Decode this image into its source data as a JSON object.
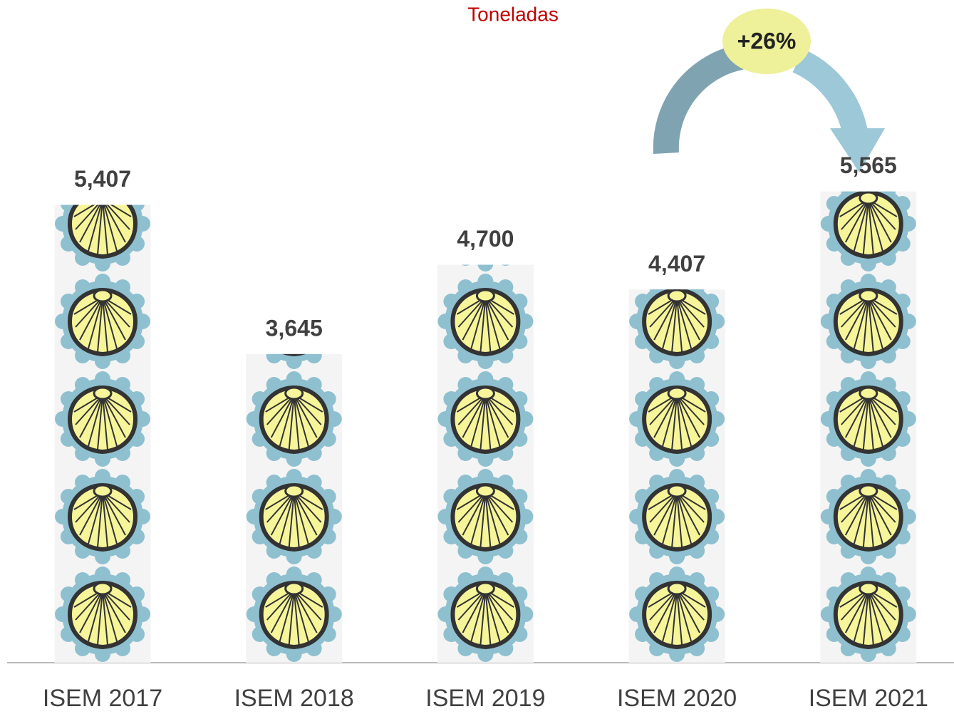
{
  "chart_data": {
    "type": "bar",
    "title": "Toneladas",
    "categories": [
      "ISEM 2017",
      "ISEM 2018",
      "ISEM 2019",
      "ISEM 2020",
      "ISEM 2021"
    ],
    "values": [
      5407,
      3645,
      4700,
      4407,
      5565
    ],
    "value_labels": [
      "5,407",
      "3,645",
      "4,700",
      "4,407",
      "5,565"
    ],
    "ylim": [
      0,
      6000
    ],
    "annotation": "+26%",
    "title_color": "#c00000"
  }
}
